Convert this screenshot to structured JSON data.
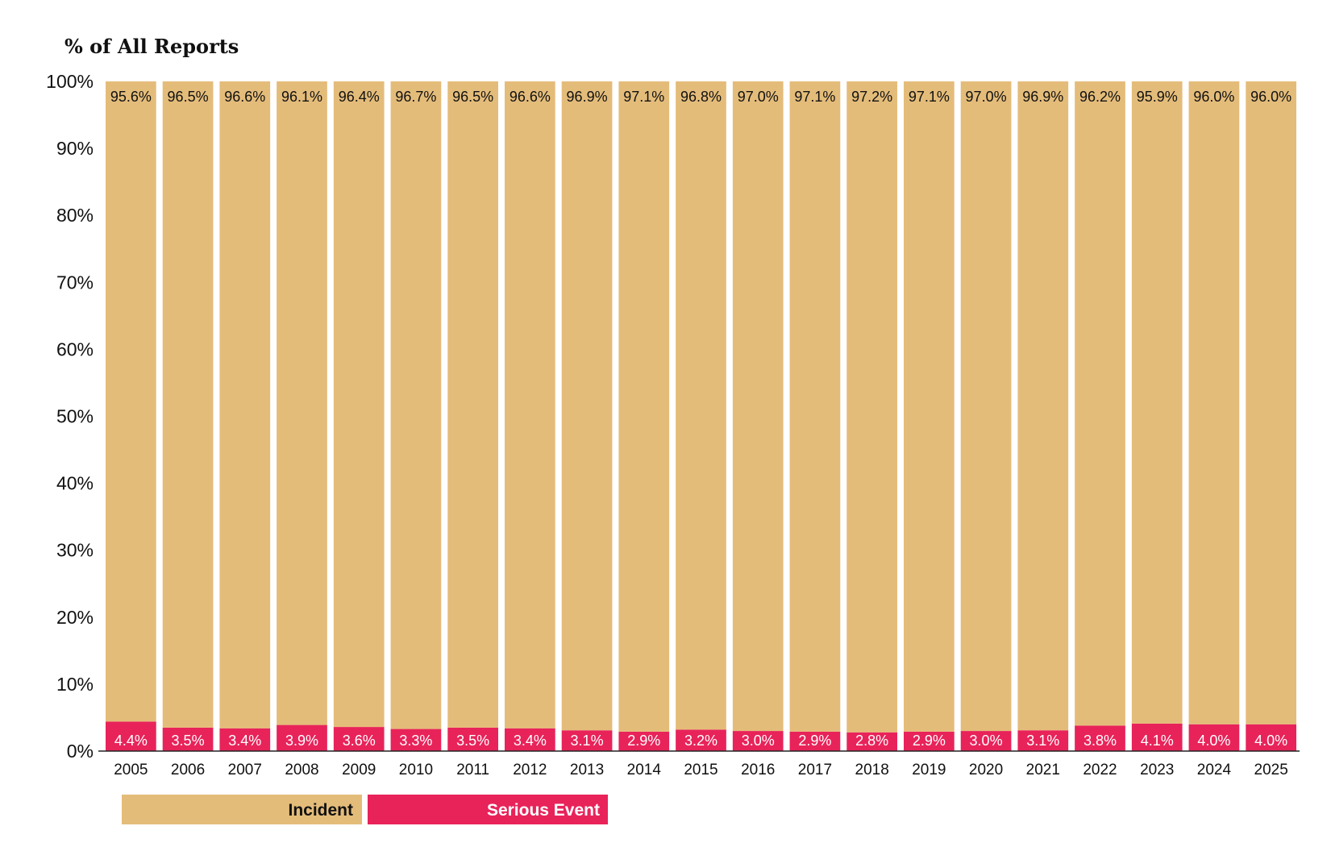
{
  "chart_data": {
    "type": "bar",
    "stacked": true,
    "title": "",
    "ylabel": "% of All Reports",
    "xlabel": "",
    "ylim": [
      0,
      100
    ],
    "yticks": [
      "0%",
      "10%",
      "20%",
      "30%",
      "40%",
      "50%",
      "60%",
      "70%",
      "80%",
      "90%",
      "100%"
    ],
    "grid": false,
    "legend_position": "bottom-left",
    "categories": [
      "2005",
      "2006",
      "2007",
      "2008",
      "2009",
      "2010",
      "2011",
      "2012",
      "2013",
      "2014",
      "2015",
      "2016",
      "2017",
      "2018",
      "2019",
      "2020",
      "2021",
      "2022",
      "2023",
      "2024",
      "2025"
    ],
    "series": [
      {
        "name": "Serious Event",
        "color": "#e8235a",
        "values": [
          4.4,
          3.5,
          3.4,
          3.9,
          3.6,
          3.3,
          3.5,
          3.4,
          3.1,
          2.9,
          3.2,
          3.0,
          2.9,
          2.8,
          2.9,
          3.0,
          3.1,
          3.8,
          4.1,
          4.0,
          4.0
        ],
        "labels": [
          "4.4%",
          "3.5%",
          "3.4%",
          "3.9%",
          "3.6%",
          "3.3%",
          "3.5%",
          "3.4%",
          "3.1%",
          "2.9%",
          "3.2%",
          "3.0%",
          "2.9%",
          "2.8%",
          "2.9%",
          "3.0%",
          "3.1%",
          "3.8%",
          "4.1%",
          "4.0%",
          "4.0%"
        ]
      },
      {
        "name": "Incident",
        "color": "#e4bc7a",
        "values": [
          95.6,
          96.5,
          96.6,
          96.1,
          96.4,
          96.7,
          96.5,
          96.6,
          96.9,
          97.1,
          96.8,
          97.0,
          97.1,
          97.2,
          97.1,
          97.0,
          96.9,
          96.2,
          95.9,
          96.0,
          96.0
        ],
        "labels": [
          "95.6%",
          "96.5%",
          "96.6%",
          "96.1%",
          "96.4%",
          "96.7%",
          "96.5%",
          "96.6%",
          "96.9%",
          "97.1%",
          "96.8%",
          "97.0%",
          "97.1%",
          "97.2%",
          "97.1%",
          "97.0%",
          "96.9%",
          "96.2%",
          "95.9%",
          "96.0%",
          "96.0%"
        ]
      }
    ]
  },
  "legend": {
    "incident_label": "Incident",
    "serious_label": "Serious Event"
  }
}
